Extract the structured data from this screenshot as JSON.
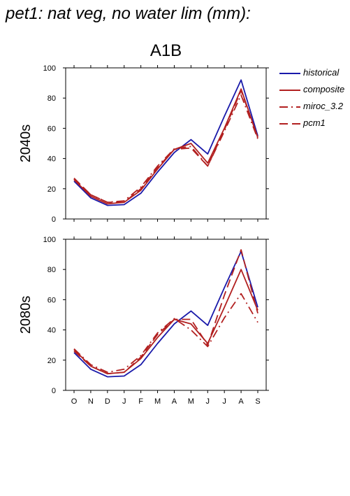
{
  "title": "pet1: nat veg, no water lim (mm):",
  "colors": {
    "historical": "#1a1aaa",
    "scenario": "#b22020"
  },
  "chart_data": [
    {
      "type": "line",
      "title": "A1B",
      "ylabel": "2040s",
      "ylim": [
        0,
        100
      ],
      "yticks": [
        0,
        20,
        40,
        60,
        80,
        100
      ],
      "categories": [
        "O",
        "N",
        "D",
        "J",
        "F",
        "M",
        "A",
        "M",
        "J",
        "J",
        "A",
        "S"
      ],
      "series": [
        {
          "name": "historical",
          "style": "solid",
          "color": "#1a1aaa",
          "values": [
            25,
            14,
            9,
            9.5,
            17,
            31,
            44,
            52.5,
            43,
            68,
            92,
            55
          ]
        },
        {
          "name": "composite",
          "style": "solid",
          "color": "#b22020",
          "values": [
            26,
            15,
            10,
            11,
            19,
            33,
            46,
            50,
            37,
            60,
            86,
            54
          ]
        },
        {
          "name": "miroc_3.2",
          "style": "dashdot",
          "color": "#b22020",
          "values": [
            26.5,
            16,
            11,
            12,
            21,
            35,
            46.5,
            48,
            35,
            58,
            82,
            53
          ]
        },
        {
          "name": "pcm1",
          "style": "dash",
          "color": "#b22020",
          "values": [
            27,
            16,
            11,
            11,
            20,
            34,
            46,
            47,
            35,
            59,
            85,
            54
          ]
        }
      ]
    },
    {
      "type": "line",
      "title": "",
      "ylabel": "2080s",
      "ylim": [
        0,
        100
      ],
      "yticks": [
        0,
        20,
        40,
        60,
        80,
        100
      ],
      "categories": [
        "O",
        "N",
        "D",
        "J",
        "F",
        "M",
        "A",
        "M",
        "J",
        "J",
        "A",
        "S"
      ],
      "series": [
        {
          "name": "historical",
          "style": "solid",
          "color": "#1a1aaa",
          "values": [
            25,
            14,
            9,
            9.5,
            17,
            31,
            44,
            52.5,
            43,
            68,
            92,
            55
          ]
        },
        {
          "name": "composite",
          "style": "solid",
          "color": "#b22020",
          "values": [
            27,
            16,
            11,
            12,
            21,
            35,
            47,
            44,
            31,
            55,
            80,
            53
          ]
        },
        {
          "name": "miroc_3.2",
          "style": "dashdot",
          "color": "#b22020",
          "values": [
            27.5,
            17,
            12,
            14,
            23,
            38,
            47.5,
            40,
            29,
            48,
            64,
            45
          ]
        },
        {
          "name": "pcm1",
          "style": "dash",
          "color": "#b22020",
          "values": [
            26,
            16,
            11,
            12,
            22,
            37,
            47,
            47,
            30,
            63,
            93,
            51
          ]
        }
      ]
    }
  ],
  "legend": [
    {
      "label": "historical",
      "style": "solid",
      "color": "#1a1aaa"
    },
    {
      "label": "composite",
      "style": "solid",
      "color": "#b22020"
    },
    {
      "label": "miroc_3.2",
      "style": "dashdot",
      "color": "#b22020"
    },
    {
      "label": "pcm1",
      "style": "dash",
      "color": "#b22020"
    }
  ]
}
